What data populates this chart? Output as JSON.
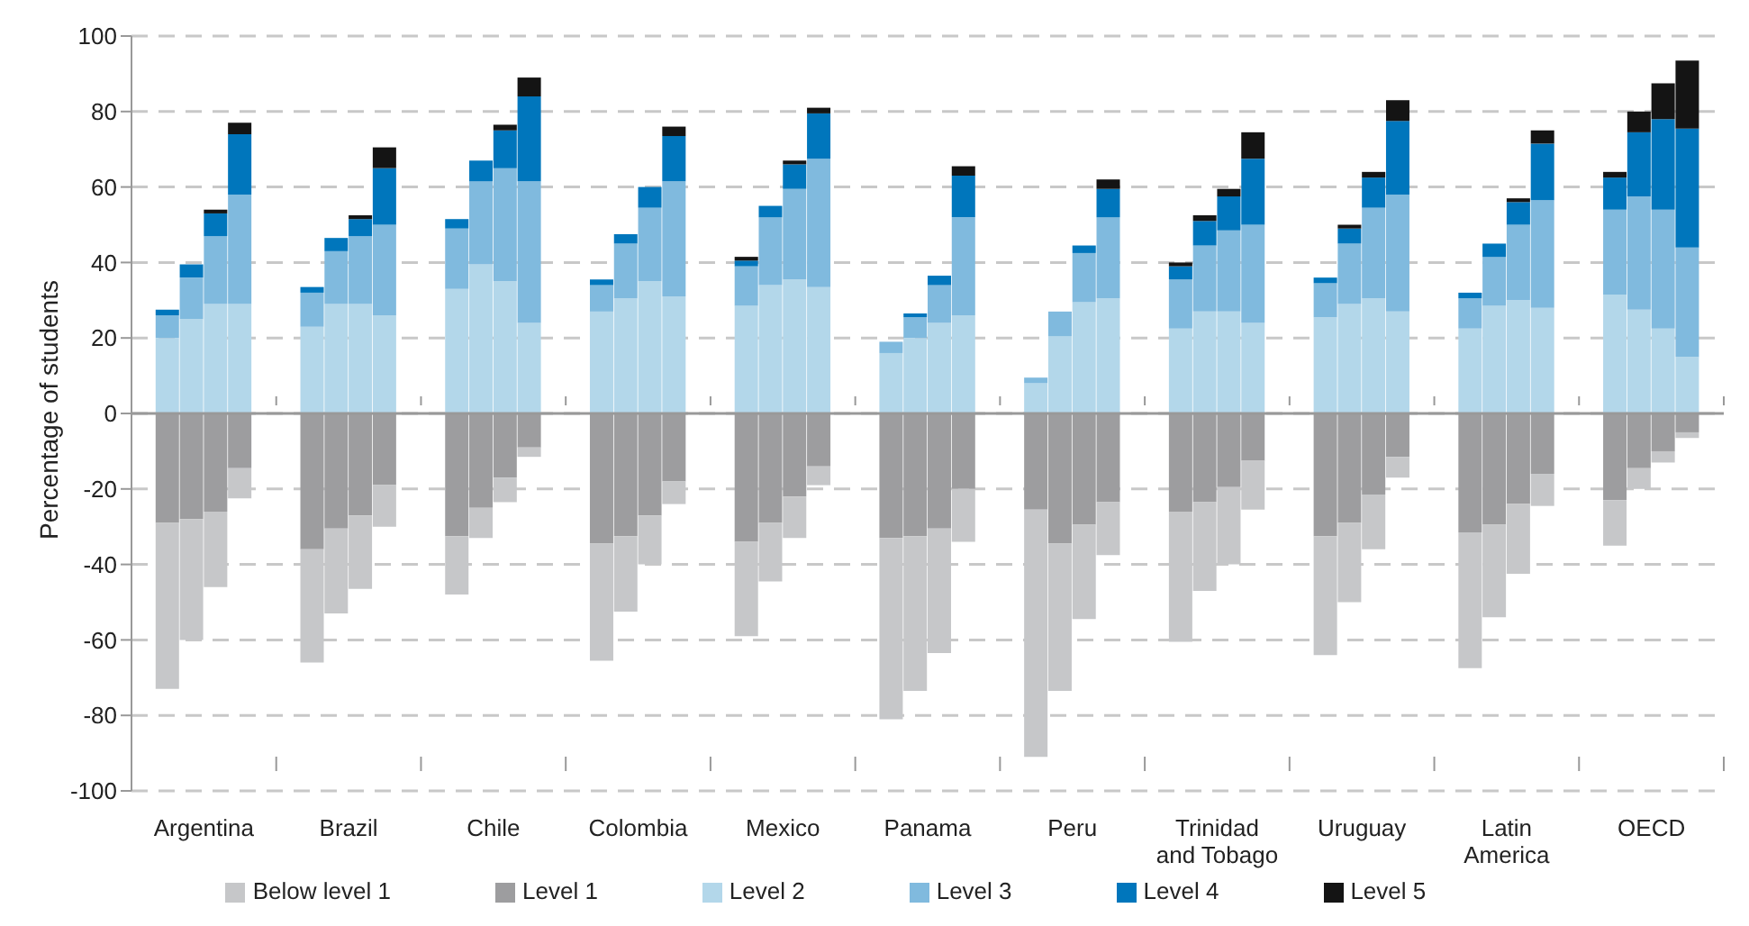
{
  "chart_data": {
    "type": "bar",
    "stacked": true,
    "ylabel": "Percentage of students",
    "categories": [
      null,
      null,
      "Argentina",
      null,
      null,
      null,
      null,
      null,
      "Brazil",
      null,
      null,
      null,
      null,
      null,
      "Chile",
      null,
      null,
      null,
      null,
      null,
      "Colombia",
      null,
      null,
      null,
      null,
      null,
      "Mexico",
      null,
      null,
      null,
      null,
      null,
      "Panama",
      null,
      null,
      null,
      null,
      null,
      "Peru",
      null,
      null,
      null,
      null,
      null,
      "Trinidad and Tobago",
      null,
      null,
      null,
      null,
      null,
      "Uruguay",
      null,
      null,
      null,
      null,
      null,
      "Latin America",
      null,
      null,
      null,
      null,
      null,
      "OECD",
      null,
      null,
      null
    ],
    "series": [
      {
        "name": "Level 1",
        "color": "#9d9d9f",
        "values": [
          null,
          -29,
          -28,
          -26,
          -14.5,
          null,
          null,
          -36,
          -30.5,
          -27,
          -19,
          null,
          null,
          -32.5,
          -25,
          -17,
          -9,
          null,
          null,
          -34.5,
          -32.5,
          -27,
          -18,
          null,
          null,
          -34,
          -29,
          -22,
          -14,
          null,
          null,
          -33,
          -32.5,
          -30.5,
          -20,
          null,
          null,
          -25.5,
          -34.5,
          -29.5,
          -23.5,
          null,
          null,
          -26,
          -23.5,
          -19.5,
          -12.5,
          null,
          null,
          -32.5,
          -29,
          -21.5,
          -11.5,
          null,
          null,
          -31.5,
          -29.5,
          -24,
          -16,
          null,
          null,
          -23,
          -14.5,
          -10,
          -5,
          null
        ]
      },
      {
        "name": "Below level 1",
        "color": "#c6c7c9",
        "values": [
          null,
          -44,
          -32,
          -20,
          -8,
          null,
          null,
          -30,
          -22.5,
          -19.5,
          -11,
          null,
          null,
          -15.5,
          -8,
          -6.5,
          -2.5,
          null,
          null,
          -31,
          -20,
          -13,
          -6,
          null,
          null,
          -25,
          -15.5,
          -11,
          -5,
          null,
          null,
          -48,
          -41,
          -33,
          -14,
          null,
          null,
          -65.5,
          -39,
          -25,
          -14,
          null,
          null,
          -34.5,
          -23.5,
          -20.5,
          -13,
          null,
          null,
          -31.5,
          -21,
          -14.5,
          -5.5,
          null,
          null,
          -36,
          -24.5,
          -18.5,
          -8.5,
          null,
          null,
          -12,
          -5.5,
          -3,
          -1.5,
          null
        ]
      },
      {
        "name": "Level 2",
        "color": "#b3d7ea",
        "values": [
          null,
          20,
          25,
          29,
          29,
          null,
          null,
          23,
          29,
          29,
          26,
          null,
          null,
          33,
          39.5,
          35,
          24,
          null,
          null,
          27,
          30.5,
          35,
          31,
          null,
          null,
          28.5,
          34,
          35.5,
          33.5,
          null,
          null,
          16,
          20,
          24,
          26,
          null,
          null,
          8,
          20.5,
          29.5,
          30.5,
          null,
          null,
          22.5,
          27,
          27,
          24,
          null,
          null,
          25.5,
          29,
          30.5,
          27,
          null,
          null,
          22.5,
          28.5,
          30,
          28,
          null,
          null,
          31.5,
          27.5,
          22.5,
          15,
          null
        ]
      },
      {
        "name": "Level 3",
        "color": "#80bade",
        "values": [
          null,
          6,
          11,
          18,
          29,
          null,
          null,
          9,
          14,
          18,
          24,
          null,
          null,
          16,
          22,
          30,
          37.5,
          null,
          null,
          7,
          14.5,
          19.5,
          30.5,
          null,
          null,
          10.5,
          18,
          24,
          34,
          null,
          null,
          3,
          5.5,
          10,
          26,
          null,
          null,
          1.5,
          6.5,
          13,
          21.5,
          null,
          null,
          13,
          17.5,
          21.5,
          26,
          null,
          null,
          9,
          16,
          24,
          31,
          null,
          null,
          8,
          13,
          20,
          28.5,
          null,
          null,
          22.5,
          30,
          31.5,
          29,
          null
        ]
      },
      {
        "name": "Level 4",
        "color": "#0076bc",
        "values": [
          null,
          1.5,
          3.5,
          6,
          16,
          null,
          null,
          1.5,
          3.5,
          4.5,
          15,
          null,
          null,
          2.5,
          5.5,
          10,
          22.5,
          null,
          null,
          1.5,
          2.5,
          5.5,
          12,
          null,
          null,
          1.5,
          3,
          6.5,
          12,
          null,
          null,
          0,
          1,
          2.5,
          11,
          null,
          null,
          0,
          0,
          2,
          7.5,
          null,
          null,
          3.5,
          6.5,
          9,
          17.5,
          null,
          null,
          1.5,
          4,
          8,
          19.5,
          null,
          null,
          1.5,
          3.5,
          6,
          15,
          null,
          null,
          8.5,
          17,
          24,
          31.5,
          null
        ]
      },
      {
        "name": "Level 5",
        "color": "#141414",
        "values": [
          null,
          0,
          0,
          1,
          3,
          null,
          null,
          0,
          0,
          1,
          5.5,
          null,
          null,
          0,
          0,
          1.5,
          5,
          null,
          null,
          0,
          0,
          0,
          2.5,
          null,
          null,
          1,
          0,
          1,
          1.5,
          null,
          null,
          0,
          0,
          0,
          2.5,
          null,
          null,
          0,
          0,
          0,
          2.5,
          null,
          null,
          1,
          1.5,
          2,
          7,
          null,
          null,
          0,
          1,
          1.5,
          5.5,
          null,
          null,
          0,
          0,
          1,
          3.5,
          null,
          null,
          1.5,
          5.5,
          9.5,
          18,
          null
        ]
      }
    ],
    "ylim": [
      -100,
      100
    ],
    "yticks": [
      -100,
      -80,
      -60,
      -40,
      -20,
      0,
      20,
      40,
      60,
      80,
      100
    ],
    "grid": "y",
    "legend": "bottom"
  }
}
